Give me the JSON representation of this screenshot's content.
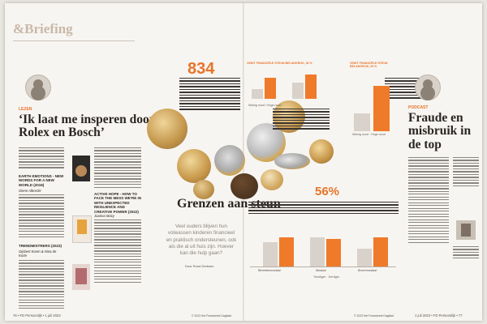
{
  "section": {
    "amp": "&",
    "name": "Briefing"
  },
  "left": {
    "label": "LEZEN",
    "title": "‘Ik laat me insperen door Rolex en Bosch’",
    "books": [
      {
        "title": "EARTH EMOTIONS - NEW WORDS FOR A NEW WORLD (2019)",
        "author": "Glenn Albrecht"
      },
      {
        "title": "ACTIVE HOPE - HOW TO FACE THE MESS WE’RE IN WITH UNEXPECTED RESILIENCE AND CREATIVE POWER (2022)",
        "author": "Joanna Macy"
      },
      {
        "title": "TRENDMISTRERS (2023)",
        "author": "Gijsbert Koren & Nina de Korte"
      }
    ],
    "footer": "76 • FD Persoonlijk • 1 juli 2023"
  },
  "center": {
    "big_number": "834",
    "title": "Grenzen aan steun",
    "subtitle": "Veel ouders blijven hun volwassen kinderen financieel en praktisch ondersteunen, ook als die al uit huis zijn. Hoever kan die hulp gaan?",
    "byline": "Door Ruud Derksen",
    "pct": "56%",
    "chart1_title": "VINDT FINANCIËLE STEUN BELANGRIJK, IN %",
    "chart2_title": "VINDT FINANCIËLE STEUN BELANGRIJK, IN %",
    "chart1_legend": [
      "Weinig nood",
      "Hoge nood"
    ],
    "chart2_legend": [
      "Weinig nood",
      "Hoge nood"
    ],
    "chart3_legend": [
      "Twintiger",
      "Dertiger"
    ],
    "chart3_categories": [
      "Benedenmodaal",
      "Modaal",
      "Bovenmodaal"
    ]
  },
  "right": {
    "label": "PODCAST",
    "title": "Fraude en misbruik in de top",
    "footer": "1 juli 2023 • FD Persoonlijk • 77"
  },
  "copyright": "© 2023 Het Financieele Dagblad"
}
